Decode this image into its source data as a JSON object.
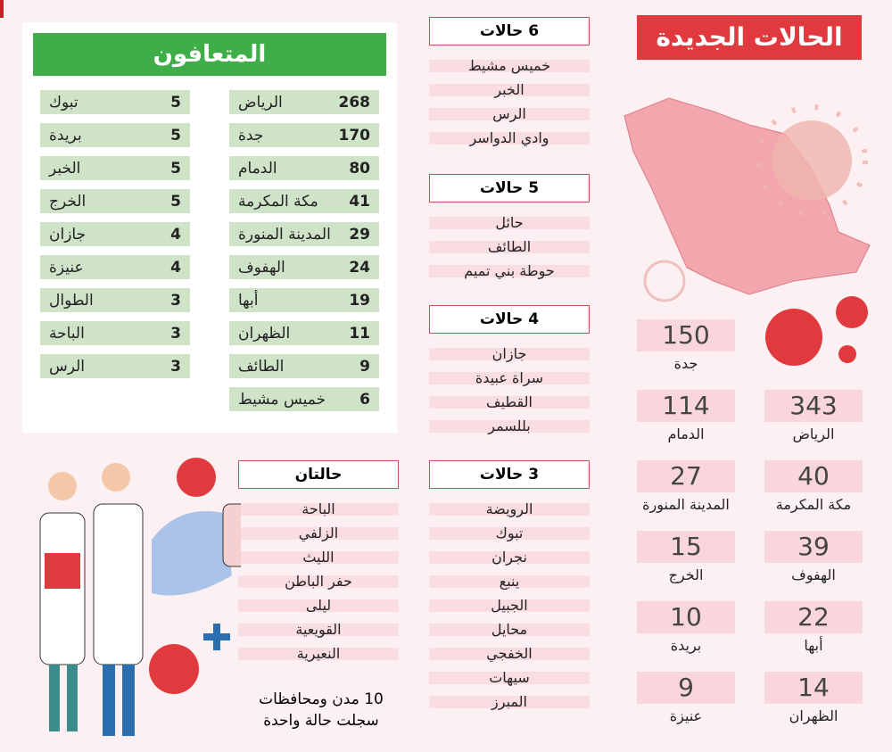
{
  "recovered": {
    "title": "المتعافون",
    "col_right": [
      {
        "city": "الرياض",
        "n": "268"
      },
      {
        "city": "جدة",
        "n": "170"
      },
      {
        "city": "الدمام",
        "n": "80"
      },
      {
        "city": "مكة المكرمة",
        "n": "41"
      },
      {
        "city": "المدينة المنورة",
        "n": "29"
      },
      {
        "city": "الهفوف",
        "n": "24"
      },
      {
        "city": "أبها",
        "n": "19"
      },
      {
        "city": "الظهران",
        "n": "11"
      },
      {
        "city": "الطائف",
        "n": "9"
      },
      {
        "city": "خميس مشيط",
        "n": "6"
      }
    ],
    "col_left": [
      {
        "city": "تبوك",
        "n": "5"
      },
      {
        "city": "بريدة",
        "n": "5"
      },
      {
        "city": "الخبر",
        "n": "5"
      },
      {
        "city": "الخرج",
        "n": "5"
      },
      {
        "city": "جازان",
        "n": "4"
      },
      {
        "city": "عنيزة",
        "n": "4"
      },
      {
        "city": "الطوال",
        "n": "3"
      },
      {
        "city": "الباحة",
        "n": "3"
      },
      {
        "city": "الرس",
        "n": "3"
      }
    ]
  },
  "new_cases": {
    "title": "الحالات الجديدة",
    "right": [
      {
        "city": "الرياض",
        "n": "343"
      },
      {
        "city": "مكة المكرمة",
        "n": "40"
      },
      {
        "city": "الهفوف",
        "n": "39"
      },
      {
        "city": "أبها",
        "n": "22"
      },
      {
        "city": "الظهران",
        "n": "14"
      }
    ],
    "left": [
      {
        "city": "جدة",
        "n": "150"
      },
      {
        "city": "الدمام",
        "n": "114"
      },
      {
        "city": "المدينة المنورة",
        "n": "27"
      },
      {
        "city": "الخرج",
        "n": "15"
      },
      {
        "city": "بريدة",
        "n": "10"
      },
      {
        "city": "عنيزة",
        "n": "9"
      }
    ]
  },
  "groups": [
    {
      "title": "6 حالات",
      "items": [
        "خميس مشيط",
        "الخبر",
        "الرس",
        "وادي الدواسر"
      ]
    },
    {
      "title": "5 حالات",
      "items": [
        "حائل",
        "الطائف",
        "حوطة بني تميم"
      ]
    },
    {
      "title": "4 حالات",
      "items": [
        "جازان",
        "سراة عبيدة",
        "القطيف",
        "بللسمر"
      ]
    },
    {
      "title": "3 حالات",
      "items": [
        "الرويضة",
        "تبوك",
        "نجران",
        "ينبع",
        "الجبيل",
        "محايل",
        "الخفجي",
        "سيهات",
        "المبرز"
      ]
    },
    {
      "title": "حالتان",
      "items": [
        "الباحة",
        "الزلفي",
        "الليث",
        "حفر الباطن",
        "ليلى",
        "القويعية",
        "النعيرية"
      ]
    }
  ],
  "note": {
    "line1": "10 مدن ومحافظات",
    "line2": "سجلت حالة واحدة"
  },
  "colors": {
    "green": "#3fae49",
    "red": "#e03a3e",
    "pink": "#f8d6dc"
  }
}
